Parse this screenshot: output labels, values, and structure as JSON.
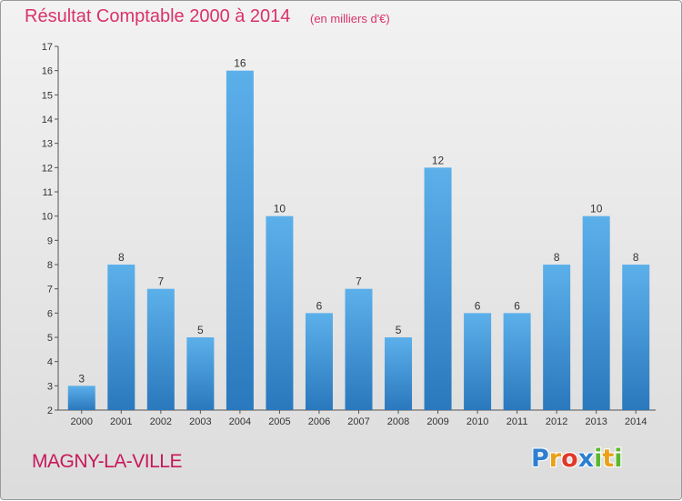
{
  "title": "Résultat Comptable 2000 à 2014",
  "subtitle": "(en milliers d'€)",
  "city": "MAGNY-LA-VILLE",
  "brand": {
    "letters": [
      "P",
      "r",
      "o",
      "x",
      "i",
      "t",
      "i"
    ],
    "colors": [
      "#2c7fd1",
      "#e8a11a",
      "#e03a2b",
      "#2c7fd1",
      "#5bb82e",
      "#e8a11a",
      "#5bb82e"
    ]
  },
  "colors": {
    "title": "#d9326b",
    "bar_top": "#5cb0ea",
    "bar_bottom": "#2a78bd",
    "axis": "#555555",
    "text": "#333333"
  },
  "chart_data": {
    "type": "bar",
    "categories": [
      "2000",
      "2001",
      "2002",
      "2003",
      "2004",
      "2005",
      "2006",
      "2007",
      "2008",
      "2009",
      "2010",
      "2011",
      "2012",
      "2013",
      "2014"
    ],
    "values": [
      3,
      8,
      7,
      5,
      16,
      10,
      6,
      7,
      5,
      12,
      6,
      6,
      8,
      10,
      8
    ],
    "data_labels": [
      "3",
      "8",
      "7",
      "5",
      "16",
      "10",
      "6",
      "7",
      "5",
      "12",
      "6",
      "6",
      "8",
      "10",
      "8"
    ],
    "ylim": [
      2,
      17
    ],
    "yticks": [
      "2",
      "3",
      "4",
      "5",
      "6",
      "7",
      "8",
      "9",
      "10",
      "11",
      "12",
      "13",
      "14",
      "15",
      "16",
      "17"
    ],
    "grid": false,
    "xlabel": "",
    "ylabel": ""
  }
}
